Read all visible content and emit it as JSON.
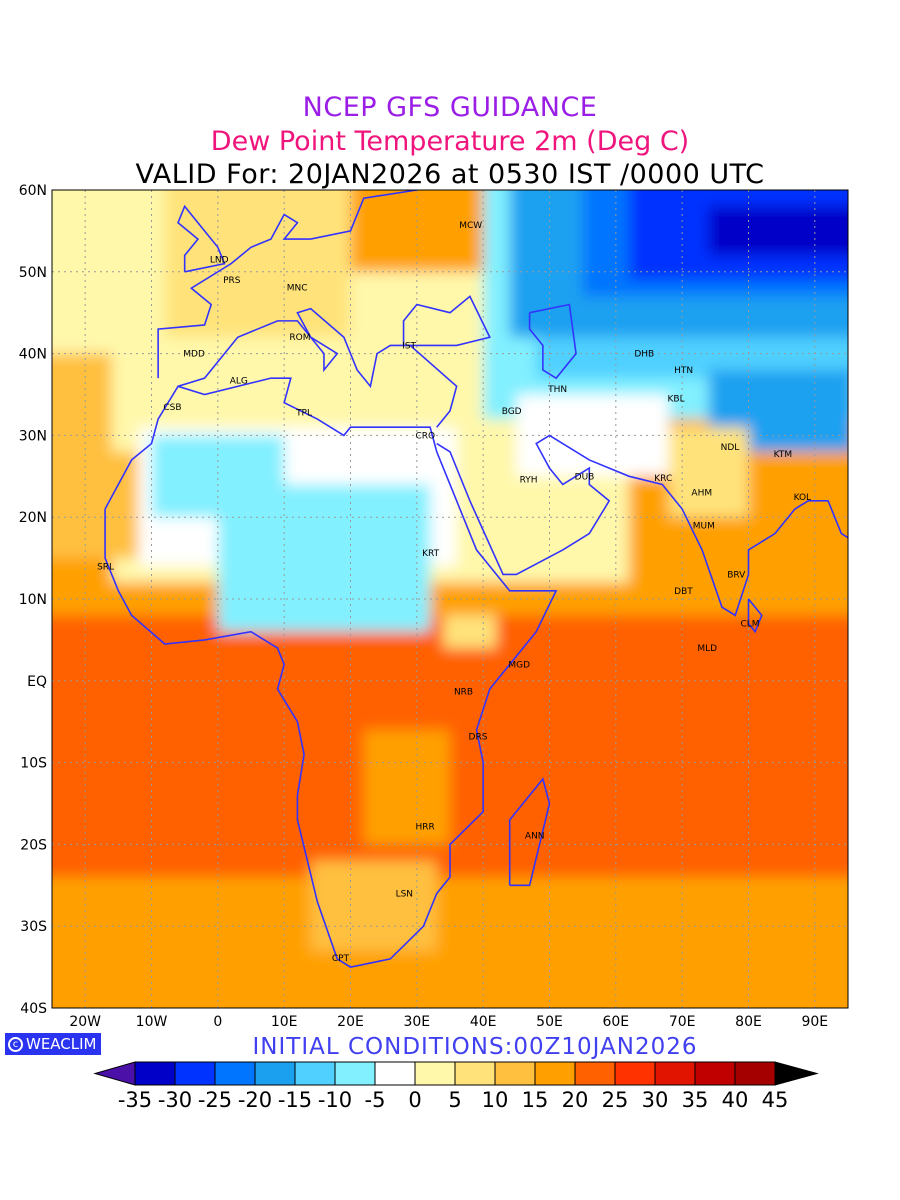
{
  "header": {
    "title": "NCEP GFS GUIDANCE",
    "subtitle": "Dew Point Temperature 2m (Deg C)",
    "valid": "VALID For: 20JAN2026 at 0530 IST /0000 UTC"
  },
  "map": {
    "lat_labels": [
      "60N",
      "50N",
      "40N",
      "30N",
      "20N",
      "10N",
      "EQ",
      "10S",
      "20S",
      "30S",
      "40S"
    ],
    "lon_labels": [
      "20W",
      "10W",
      "0",
      "10E",
      "20E",
      "30E",
      "40E",
      "50E",
      "60E",
      "70E",
      "80E",
      "90E"
    ],
    "cities": [
      "LND",
      "PRS",
      "MNC",
      "ROM",
      "IST",
      "MDD",
      "ALG",
      "CSB",
      "TPL",
      "KRT",
      "CRO",
      "BGD",
      "THN",
      "DHB",
      "HTN",
      "KBL",
      "NDL",
      "KTM",
      "RYH",
      "DUB",
      "KRC",
      "AHM",
      "KOL",
      "MUM",
      "DBT",
      "BRV",
      "CLM",
      "MLD",
      "SRL",
      "NRB",
      "DRS",
      "ANN",
      "HRR",
      "LSN",
      "CPT",
      "MCW",
      "MGD"
    ]
  },
  "footer": {
    "logo": "WEACLIM",
    "initial": "INITIAL CONDITIONS:00Z10JAN2026"
  },
  "colorbar": {
    "labels": [
      "-35",
      "-30",
      "-25",
      "-20",
      "-15",
      "-10",
      "-5",
      "0",
      "5",
      "10",
      "15",
      "20",
      "25",
      "30",
      "35",
      "40",
      "45"
    ],
    "under_color": "#4a10a8",
    "over_color": "#000000",
    "colors": [
      "#0000c8",
      "#0033ff",
      "#0075ff",
      "#1ba0f0",
      "#50d0ff",
      "#82f0ff",
      "#ffffff",
      "#fff8aa",
      "#ffe37a",
      "#ffc040",
      "#ffa000",
      "#ff6000",
      "#ff3200",
      "#e11400",
      "#c00000",
      "#a50000"
    ]
  }
}
